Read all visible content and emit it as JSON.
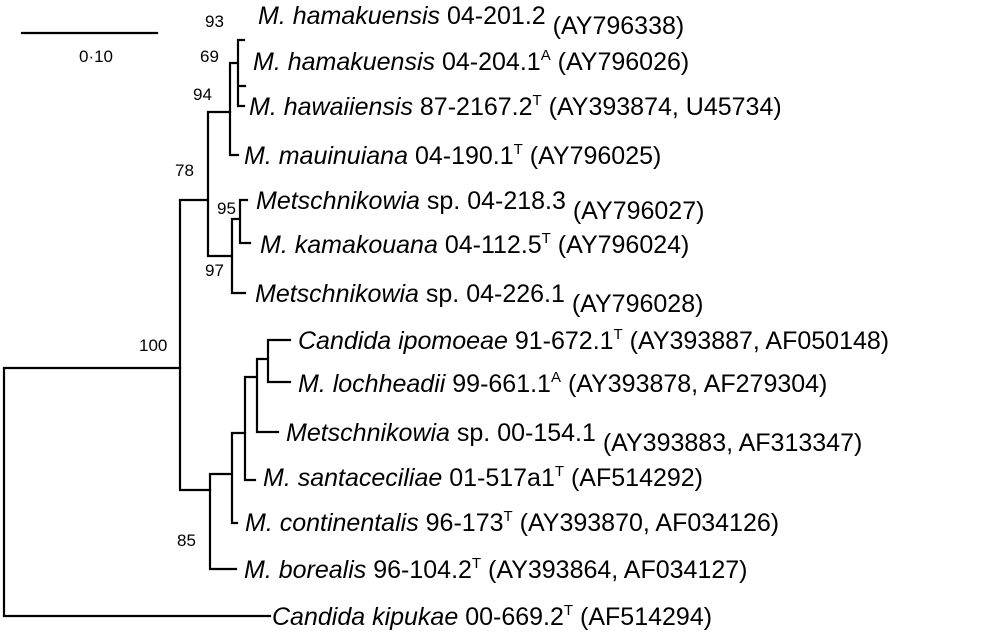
{
  "scale_bar": {
    "label": "0·10"
  },
  "taxa": [
    {
      "italic": "M. hamakuensis",
      "strain": "04-201.2",
      "sup": "",
      "accession": "(AY796338)"
    },
    {
      "italic": "M. hamakuensis",
      "strain": "04-204.1",
      "sup": "A",
      "accession": "(AY796026)"
    },
    {
      "italic": "M. hawaiiensis",
      "strain": "87-2167.2",
      "sup": "T",
      "accession": "(AY393874, U45734)"
    },
    {
      "italic": "M. mauinuiana",
      "strain": "04-190.1",
      "sup": "T",
      "accession": "(AY796025)"
    },
    {
      "italic": "Metschnikowia",
      "strain": "sp. 04-218.3",
      "sup": "",
      "accession": "(AY796027)"
    },
    {
      "italic": "M. kamakouana",
      "strain": "04-112.5",
      "sup": "T",
      "accession": "(AY796024)"
    },
    {
      "italic": "Metschnikowia",
      "strain": "sp. 04-226.1",
      "sup": "",
      "accession": "(AY796028)"
    },
    {
      "italic": "Candida ipomoeae",
      "strain": "91-672.1",
      "sup": "T",
      "accession": "(AY393887, AF050148)"
    },
    {
      "italic": "M. lochheadii",
      "strain": "99-661.1",
      "sup": "A",
      "accession": "(AY393878, AF279304)"
    },
    {
      "italic": "Metschnikowia",
      "strain": "sp. 00-154.1",
      "sup": "",
      "accession": "(AY393883, AF313347)"
    },
    {
      "italic": "M. santaceciliae",
      "strain": "01-517a1",
      "sup": "T",
      "accession": "(AF514292)"
    },
    {
      "italic": "M. continentalis",
      "strain": "96-173",
      "sup": "T",
      "accession": "(AY393870, AF034126)"
    },
    {
      "italic": "M. borealis",
      "strain": "96-104.2",
      "sup": "T",
      "accession": "(AY393864, AF034127)"
    },
    {
      "italic": "Candida kipukae",
      "strain": "00-669.2",
      "sup": "T",
      "accession": "(AF514294)"
    }
  ],
  "bootstrap": [
    "93",
    "69",
    "94",
    "78",
    "95",
    "97",
    "100",
    "85"
  ]
}
